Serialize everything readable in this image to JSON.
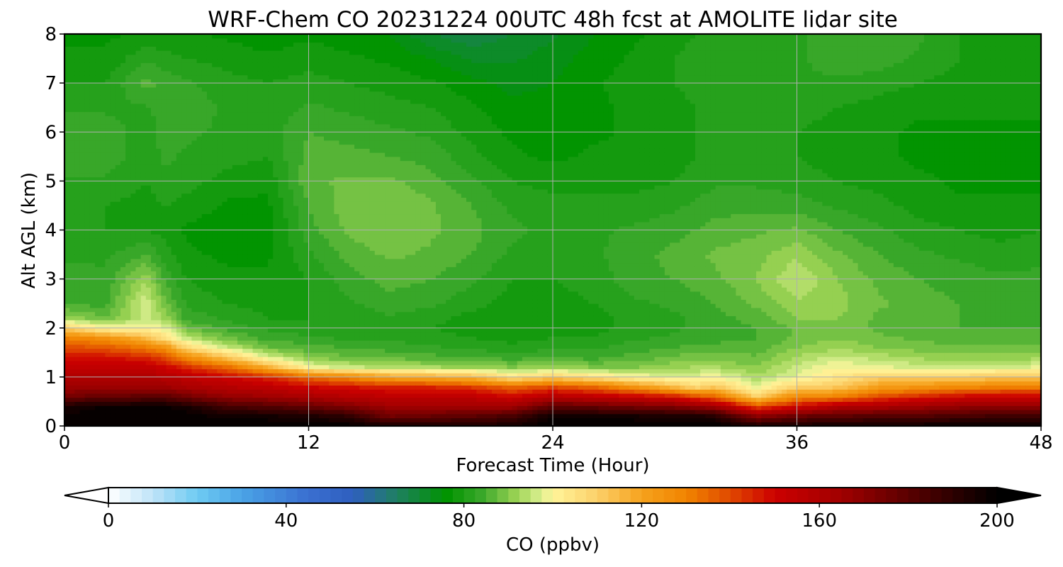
{
  "chart_data": {
    "type": "heatmap",
    "title": "WRF-Chem CO  20231224 00UTC 48h fcst at AMOLITE lidar site",
    "xlabel": "Forecast Time (Hour)",
    "ylabel": "Alt AGL (km)",
    "xlim": [
      0,
      48
    ],
    "ylim": [
      0,
      8
    ],
    "xticks": [
      0,
      12,
      24,
      36,
      48
    ],
    "yticks": [
      0,
      1,
      2,
      3,
      4,
      5,
      6,
      7,
      8
    ],
    "grid": true,
    "colorbar": {
      "label": "CO  (ppbv)",
      "vmin": 0,
      "vmax": 200,
      "ticks": [
        0,
        40,
        80,
        120,
        160,
        200
      ],
      "extend": "both",
      "orientation": "horizontal",
      "stops": [
        {
          "value": 0,
          "color": "#ffffff"
        },
        {
          "value": 10,
          "color": "#bfe3f8"
        },
        {
          "value": 20,
          "color": "#6ecbf2"
        },
        {
          "value": 30,
          "color": "#4aa3e6"
        },
        {
          "value": 45,
          "color": "#3a6fd0"
        },
        {
          "value": 55,
          "color": "#2f5fbf"
        },
        {
          "value": 65,
          "color": "#1f8060"
        },
        {
          "value": 76,
          "color": "#009300"
        },
        {
          "value": 84,
          "color": "#3aa82a"
        },
        {
          "value": 92,
          "color": "#9ed455"
        },
        {
          "value": 97,
          "color": "#d8ee8e"
        },
        {
          "value": 100,
          "color": "#fff59a"
        },
        {
          "value": 110,
          "color": "#fcd06a"
        },
        {
          "value": 120,
          "color": "#f6a21d"
        },
        {
          "value": 130,
          "color": "#f18400"
        },
        {
          "value": 140,
          "color": "#e04800"
        },
        {
          "value": 150,
          "color": "#cc0000"
        },
        {
          "value": 165,
          "color": "#a00000"
        },
        {
          "value": 180,
          "color": "#5a0000"
        },
        {
          "value": 200,
          "color": "#000000"
        }
      ]
    },
    "profile_times_hours": [
      0,
      2,
      4,
      5,
      6,
      8,
      10,
      12,
      14,
      16,
      18,
      20,
      22,
      24,
      26,
      28,
      30,
      31,
      32,
      34,
      36,
      38,
      40,
      42,
      44,
      46,
      48
    ],
    "profile_altitudes_km": [
      0,
      0.2,
      0.4,
      0.6,
      0.8,
      1.0,
      1.2,
      1.4,
      1.6,
      1.8,
      2.0,
      2.2,
      2.5,
      3.0,
      3.5,
      4.0,
      4.5,
      5.0,
      5.5,
      6.0,
      6.5,
      7.0,
      7.5,
      8.0
    ],
    "profiles_co_ppbv": {
      "0": [
        200,
        198,
        195,
        175,
        165,
        160,
        155,
        148,
        140,
        130,
        110,
        92,
        85,
        84,
        82,
        80,
        80,
        82,
        84,
        84,
        82,
        80,
        78,
        77
      ],
      "2": [
        200,
        200,
        198,
        178,
        166,
        160,
        155,
        148,
        138,
        126,
        100,
        88,
        84,
        83,
        82,
        80,
        80,
        82,
        84,
        84,
        82,
        80,
        78,
        77
      ],
      "4": [
        200,
        200,
        198,
        180,
        166,
        160,
        155,
        145,
        132,
        115,
        100,
        96,
        97,
        92,
        85,
        80,
        79,
        80,
        81,
        81,
        82,
        86,
        82,
        78
      ],
      "5": [
        200,
        200,
        198,
        180,
        165,
        158,
        150,
        140,
        125,
        105,
        98,
        92,
        88,
        84,
        81,
        79,
        80,
        82,
        83,
        84,
        84,
        84,
        81,
        78
      ],
      "6": [
        200,
        200,
        195,
        175,
        162,
        155,
        145,
        128,
        108,
        95,
        88,
        84,
        82,
        80,
        78,
        77,
        79,
        81,
        82,
        83,
        84,
        83,
        80,
        78
      ],
      "8": [
        200,
        196,
        185,
        168,
        158,
        150,
        135,
        112,
        96,
        88,
        84,
        82,
        80,
        78,
        77,
        76,
        77,
        79,
        81,
        82,
        82,
        81,
        79,
        77
      ],
      "10": [
        200,
        196,
        182,
        165,
        155,
        145,
        118,
        98,
        88,
        84,
        82,
        80,
        79,
        78,
        77,
        76,
        77,
        78,
        80,
        81,
        81,
        80,
        78,
        76
      ],
      "12": [
        200,
        194,
        178,
        162,
        150,
        135,
        100,
        90,
        86,
        83,
        81,
        80,
        80,
        80,
        82,
        84,
        85,
        87,
        86,
        85,
        83,
        81,
        79,
        77
      ],
      "14": [
        200,
        190,
        172,
        158,
        148,
        128,
        96,
        88,
        85,
        82,
        81,
        81,
        82,
        84,
        86,
        88,
        89,
        88,
        86,
        84,
        82,
        80,
        78,
        76
      ],
      "16": [
        195,
        175,
        165,
        155,
        145,
        120,
        94,
        87,
        84,
        82,
        81,
        82,
        84,
        86,
        88,
        90,
        90,
        88,
        85,
        83,
        81,
        79,
        77,
        75
      ],
      "18": [
        195,
        178,
        165,
        155,
        145,
        118,
        93,
        86,
        83,
        81,
        80,
        81,
        83,
        85,
        87,
        88,
        88,
        86,
        84,
        82,
        80,
        78,
        75,
        70
      ],
      "20": [
        195,
        180,
        165,
        155,
        142,
        115,
        92,
        85,
        82,
        80,
        79,
        79,
        81,
        83,
        85,
        86,
        85,
        83,
        81,
        79,
        78,
        76,
        72,
        68
      ],
      "22": [
        195,
        185,
        165,
        150,
        135,
        105,
        90,
        84,
        81,
        79,
        78,
        78,
        79,
        80,
        82,
        83,
        82,
        80,
        78,
        77,
        76,
        74,
        72,
        70
      ],
      "24": [
        200,
        198,
        180,
        158,
        140,
        110,
        92,
        85,
        82,
        80,
        78,
        78,
        79,
        80,
        81,
        82,
        81,
        79,
        77,
        76,
        76,
        75,
        74,
        72
      ],
      "26": [
        200,
        196,
        178,
        155,
        135,
        105,
        90,
        84,
        82,
        80,
        79,
        79,
        80,
        81,
        82,
        82,
        81,
        79,
        78,
        77,
        77,
        77,
        76,
        75
      ],
      "28": [
        200,
        196,
        175,
        152,
        125,
        100,
        90,
        86,
        84,
        82,
        81,
        81,
        82,
        84,
        84,
        83,
        81,
        79,
        78,
        78,
        78,
        79,
        78,
        77
      ],
      "30": [
        200,
        195,
        172,
        148,
        115,
        98,
        92,
        88,
        85,
        83,
        82,
        82,
        83,
        85,
        86,
        84,
        82,
        80,
        79,
        79,
        79,
        80,
        80,
        79
      ],
      "31": [
        200,
        195,
        168,
        140,
        108,
        98,
        93,
        89,
        86,
        84,
        83,
        83,
        84,
        86,
        87,
        85,
        83,
        81,
        80,
        80,
        80,
        81,
        81,
        80
      ],
      "32": [
        200,
        192,
        165,
        135,
        112,
        100,
        93,
        89,
        86,
        84,
        83,
        84,
        85,
        87,
        88,
        86,
        84,
        82,
        80,
        80,
        81,
        82,
        82,
        81
      ],
      "34": [
        195,
        170,
        140,
        110,
        98,
        93,
        90,
        88,
        86,
        85,
        85,
        86,
        88,
        90,
        89,
        87,
        84,
        82,
        80,
        80,
        81,
        82,
        82,
        82
      ],
      "36": [
        195,
        178,
        150,
        128,
        110,
        98,
        96,
        93,
        90,
        88,
        88,
        90,
        92,
        95,
        92,
        88,
        84,
        81,
        80,
        80,
        81,
        82,
        82,
        82
      ],
      "38": [
        198,
        180,
        160,
        130,
        112,
        104,
        100,
        96,
        92,
        90,
        89,
        90,
        91,
        90,
        88,
        85,
        82,
        80,
        79,
        79,
        80,
        82,
        84,
        84
      ],
      "40": [
        198,
        182,
        162,
        140,
        122,
        110,
        98,
        94,
        90,
        88,
        87,
        87,
        88,
        87,
        85,
        83,
        81,
        79,
        78,
        78,
        79,
        81,
        84,
        84
      ],
      "42": [
        198,
        182,
        165,
        145,
        125,
        110,
        97,
        92,
        89,
        87,
        86,
        86,
        86,
        85,
        83,
        81,
        79,
        78,
        77,
        77,
        78,
        80,
        82,
        83
      ],
      "44": [
        200,
        185,
        168,
        150,
        128,
        110,
        96,
        91,
        88,
        86,
        85,
        85,
        85,
        84,
        82,
        80,
        78,
        77,
        77,
        77,
        78,
        79,
        80,
        80
      ],
      "46": [
        200,
        186,
        170,
        152,
        130,
        112,
        97,
        91,
        88,
        86,
        85,
        84,
        84,
        83,
        81,
        79,
        78,
        77,
        77,
        77,
        78,
        79,
        79,
        79
      ],
      "48": [
        200,
        186,
        170,
        152,
        130,
        112,
        98,
        92,
        88,
        86,
        85,
        84,
        84,
        83,
        82,
        80,
        78,
        77,
        77,
        77,
        78,
        79,
        79,
        79
      ]
    }
  }
}
